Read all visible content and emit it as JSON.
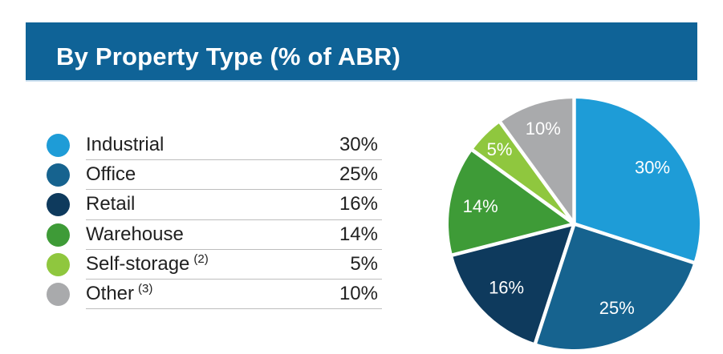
{
  "header": {
    "title": "By Property Type (% of ABR)",
    "bg_color": "#0F6397",
    "underline_color": "#CFE2F1",
    "text_color": "#FFFFFF"
  },
  "legend": {
    "text_color": "#212121",
    "divider_color": "#BDBDBD"
  },
  "chart_data": {
    "type": "pie",
    "title": "By Property Type (% of ABR)",
    "start_angle_deg": 0,
    "direction": "clockwise",
    "gap_color": "#FFFFFF",
    "label_color": "#FFFFFF",
    "slices": [
      {
        "label": "Industrial",
        "footnote": "",
        "value": 30,
        "pct_label": "30%",
        "color": "#1E9CD7"
      },
      {
        "label": "Office",
        "footnote": "",
        "value": 25,
        "pct_label": "25%",
        "color": "#16638F"
      },
      {
        "label": "Retail",
        "footnote": "",
        "value": 16,
        "pct_label": "16%",
        "color": "#0E3A5D"
      },
      {
        "label": "Warehouse",
        "footnote": "",
        "value": 14,
        "pct_label": "14%",
        "color": "#3E9B37"
      },
      {
        "label": "Self-storage",
        "footnote": "(2)",
        "value": 5,
        "pct_label": "5%",
        "color": "#8FC73E"
      },
      {
        "label": "Other",
        "footnote": "(3)",
        "value": 10,
        "pct_label": "10%",
        "color": "#A9AAAC"
      }
    ]
  }
}
